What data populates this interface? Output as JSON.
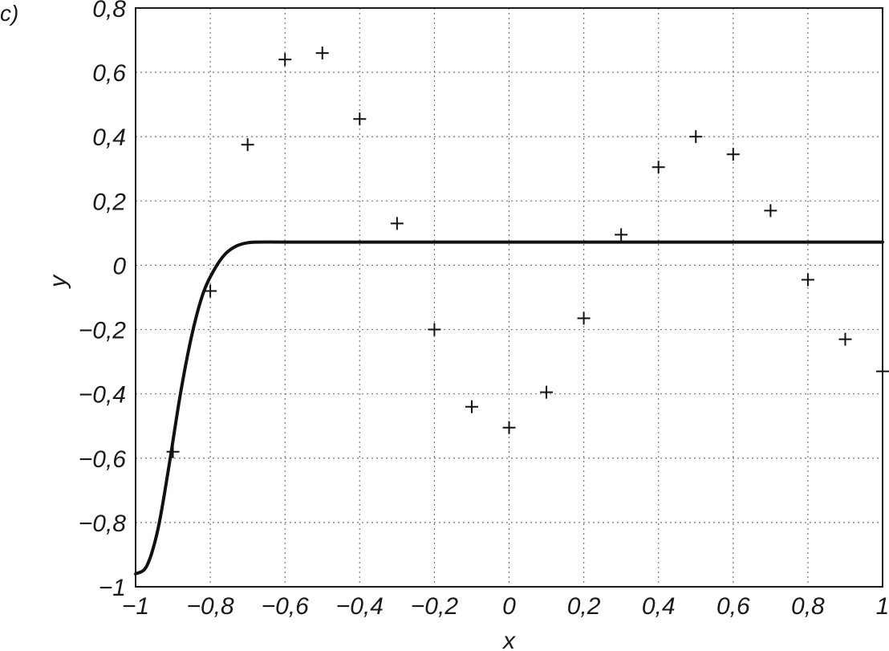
{
  "panel_label": "c)",
  "chart_data": {
    "type": "scatter",
    "xlabel": "x",
    "ylabel": "y",
    "xlim": [
      -1,
      1
    ],
    "ylim": [
      -1,
      0.8
    ],
    "grid": true,
    "x_ticks": [
      -1,
      -0.8,
      -0.6,
      -0.4,
      -0.2,
      0,
      0.2,
      0.4,
      0.6,
      0.8,
      1
    ],
    "x_tick_labels": [
      "−1",
      "−0,8",
      "−0,6",
      "−0,4",
      "−0,2",
      "0",
      "0,2",
      "0,4",
      "0,6",
      "0,8",
      "1"
    ],
    "y_ticks": [
      -1,
      -0.8,
      -0.6,
      -0.4,
      -0.2,
      0,
      0.2,
      0.4,
      0.6,
      0.8
    ],
    "y_tick_labels": [
      "−1",
      "−0,8",
      "−0,6",
      "−0,4",
      "−0,2",
      "0",
      "0,2",
      "0,4",
      "0,6",
      "0,8"
    ],
    "series": [
      {
        "type": "scatter",
        "marker": "+",
        "x": [
          -0.9,
          -0.8,
          -0.7,
          -0.6,
          -0.5,
          -0.4,
          -0.3,
          -0.2,
          -0.1,
          0,
          0.1,
          0.2,
          0.3,
          0.4,
          0.5,
          0.6,
          0.7,
          0.8,
          0.9,
          1.0
        ],
        "y": [
          -0.58,
          -0.08,
          0.375,
          0.64,
          0.66,
          0.455,
          0.13,
          -0.2,
          -0.44,
          -0.505,
          -0.395,
          -0.165,
          0.095,
          0.305,
          0.4,
          0.345,
          0.17,
          -0.045,
          -0.23,
          -0.33
        ]
      },
      {
        "type": "line",
        "x": [
          -1.0,
          -0.97,
          -0.94,
          -0.91,
          -0.88,
          -0.85,
          -0.82,
          -0.79,
          -0.76,
          -0.73,
          -0.7,
          -0.67,
          -0.6,
          -0.4,
          -0.2,
          0,
          0.2,
          0.4,
          0.6,
          0.8,
          1.0
        ],
        "y": [
          -0.96,
          -0.935,
          -0.82,
          -0.62,
          -0.4,
          -0.22,
          -0.09,
          -0.015,
          0.035,
          0.06,
          0.07,
          0.072,
          0.072,
          0.072,
          0.072,
          0.072,
          0.072,
          0.072,
          0.072,
          0.072,
          0.072
        ]
      }
    ]
  }
}
